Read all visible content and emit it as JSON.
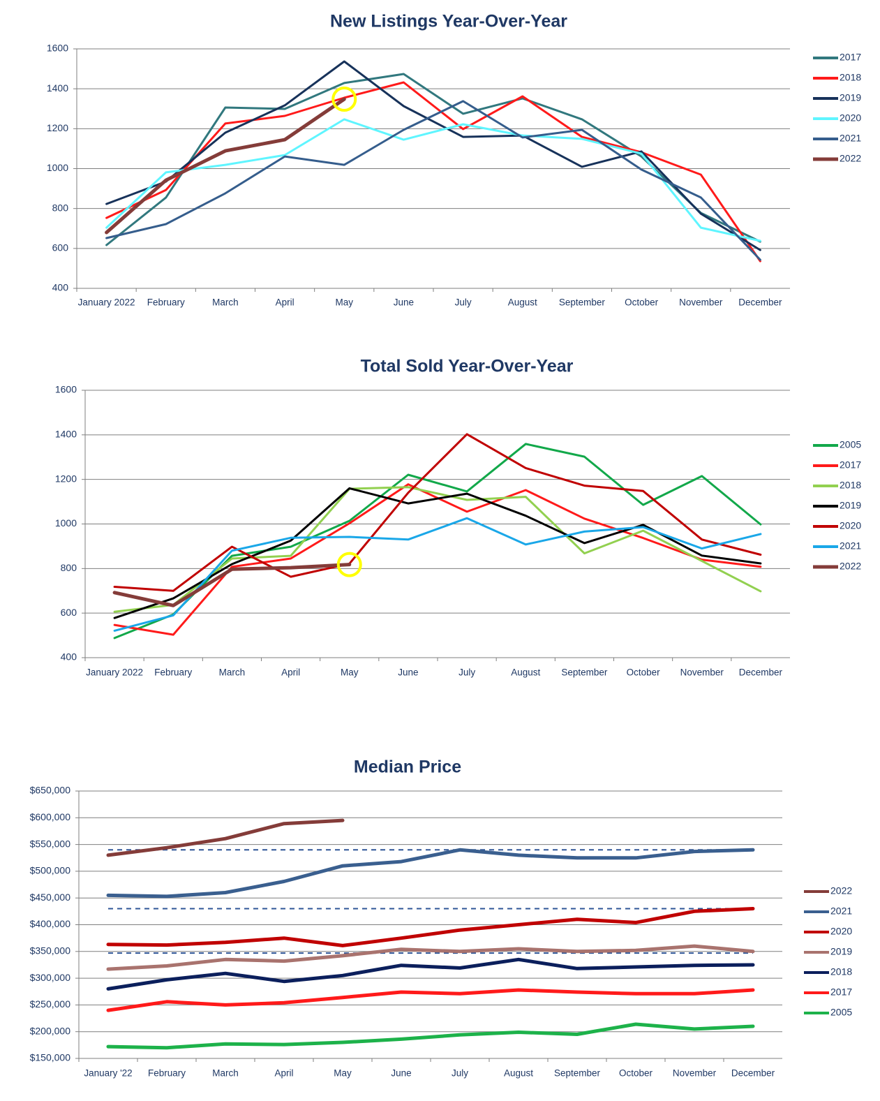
{
  "chart_data": [
    {
      "type": "line",
      "title": "New Listings Year-Over-Year",
      "categories": [
        "January 2022",
        "February",
        "March",
        "April",
        "May",
        "June",
        "July",
        "August",
        "September",
        "October",
        "November",
        "December"
      ],
      "ylim": [
        400,
        1600
      ],
      "yticks": [
        400,
        600,
        800,
        1000,
        1200,
        1400,
        1600
      ],
      "grid": true,
      "legend": "right",
      "series": [
        {
          "name": "2017",
          "color": "#31787e",
          "values": [
            617,
            855,
            1306,
            1299,
            1429,
            1474,
            1275,
            1352,
            1247,
            1061,
            778,
            634
          ]
        },
        {
          "name": "2018",
          "color": "#ff1a1a",
          "values": [
            753,
            893,
            1226,
            1264,
            1355,
            1432,
            1198,
            1362,
            1159,
            1082,
            970,
            536
          ]
        },
        {
          "name": "2019",
          "color": "#17325a",
          "values": [
            823,
            935,
            1180,
            1317,
            1537,
            1313,
            1159,
            1166,
            1009,
            1086,
            774,
            592
          ]
        },
        {
          "name": "2020",
          "color": "#5ff5ff",
          "values": [
            704,
            981,
            1019,
            1068,
            1247,
            1145,
            1222,
            1166,
            1149,
            1075,
            704,
            638
          ]
        },
        {
          "name": "2021",
          "color": "#355d8c",
          "values": [
            652,
            722,
            876,
            1061,
            1019,
            1194,
            1338,
            1156,
            1194,
            995,
            855,
            543
          ]
        },
        {
          "name": "2022",
          "color": "#843c39",
          "values": [
            680,
            942,
            1089,
            1145,
            1348,
            null,
            null,
            null,
            null,
            null,
            null,
            null
          ]
        }
      ]
    },
    {
      "type": "line",
      "title": "Total Sold Year-Over-Year",
      "categories": [
        "January 2022",
        "February",
        "March",
        "April",
        "May",
        "June",
        "July",
        "August",
        "September",
        "October",
        "November",
        "December"
      ],
      "ylim": [
        400,
        1600
      ],
      "yticks": [
        400,
        600,
        800,
        1000,
        1200,
        1400,
        1600
      ],
      "grid": true,
      "legend": "right",
      "series": [
        {
          "name": "2005",
          "color": "#12a84a",
          "values": [
            488,
            594,
            857,
            898,
            1014,
            1221,
            1146,
            1359,
            1302,
            1086,
            1215,
            998
          ]
        },
        {
          "name": "2017",
          "color": "#ff1a1a",
          "values": [
            547,
            503,
            808,
            845,
            1003,
            1178,
            1055,
            1152,
            1024,
            937,
            840,
            808
          ]
        },
        {
          "name": "2018",
          "color": "#92d050",
          "values": [
            606,
            637,
            845,
            857,
            1158,
            1165,
            1108,
            1122,
            868,
            970,
            834,
            698
          ]
        },
        {
          "name": "2019",
          "color": "#000000",
          "values": [
            578,
            666,
            820,
            925,
            1160,
            1092,
            1136,
            1037,
            914,
            996,
            858,
            823
          ]
        },
        {
          "name": "2020",
          "color": "#c00000",
          "values": [
            718,
            700,
            898,
            763,
            822,
            1140,
            1403,
            1251,
            1172,
            1148,
            930,
            862
          ]
        },
        {
          "name": "2021",
          "color": "#1aa7e8",
          "values": [
            521,
            590,
            880,
            938,
            942,
            930,
            1026,
            908,
            966,
            986,
            890,
            955
          ]
        },
        {
          "name": "2022",
          "color": "#843c39",
          "values": [
            692,
            634,
            797,
            804,
            818,
            null,
            null,
            null,
            null,
            null,
            null,
            null
          ]
        }
      ]
    },
    {
      "type": "line",
      "title": "Median Price",
      "categories": [
        "January '22",
        "February",
        "March",
        "April",
        "May",
        "June",
        "July",
        "August",
        "September",
        "October",
        "November",
        "December"
      ],
      "ylim": [
        150000,
        650000
      ],
      "yticks": [
        {
          "value": 150000,
          "label": "$150,000"
        },
        {
          "value": 200000,
          "label": "$200,000"
        },
        {
          "value": 250000,
          "label": "$250,000"
        },
        {
          "value": 300000,
          "label": "$300,000"
        },
        {
          "value": 350000,
          "label": "$350,000"
        },
        {
          "value": 400000,
          "label": "$400,000"
        },
        {
          "value": 450000,
          "label": "$450,000"
        },
        {
          "value": 500000,
          "label": "$500,000"
        },
        {
          "value": 550000,
          "label": "$550,000"
        },
        {
          "value": 600000,
          "label": "$600,000"
        },
        {
          "value": 650000,
          "label": "$650,000"
        }
      ],
      "grid": true,
      "legend": "right",
      "reference_lines": [
        540000,
        430000,
        347000
      ],
      "reference_color": "#2f5597",
      "series": [
        {
          "name": "2022",
          "color": "#843c39",
          "values": [
            530000,
            544000,
            561000,
            589000,
            595000,
            null,
            null,
            null,
            null,
            null,
            null,
            null
          ]
        },
        {
          "name": "2021",
          "color": "#3a5f8f",
          "values": [
            455000,
            453000,
            460000,
            481000,
            510000,
            518000,
            540000,
            530000,
            525000,
            525000,
            537000,
            540000
          ]
        },
        {
          "name": "2020",
          "color": "#c00000",
          "values": [
            363000,
            362000,
            367000,
            375000,
            361000,
            375000,
            390000,
            400000,
            410000,
            404000,
            425000,
            430000
          ]
        },
        {
          "name": "2019",
          "color": "#a9736e",
          "values": [
            317000,
            323000,
            335000,
            332000,
            342000,
            354000,
            350000,
            355000,
            350000,
            352000,
            360000,
            350000
          ]
        },
        {
          "name": "2018",
          "color": "#0b1f5c",
          "values": [
            280000,
            297000,
            309000,
            294000,
            305000,
            324000,
            319000,
            335000,
            318000,
            321000,
            324000,
            325000
          ]
        },
        {
          "name": "2017",
          "color": "#ff1a1a",
          "values": [
            240000,
            256000,
            250000,
            254000,
            264000,
            274000,
            271000,
            278000,
            274000,
            271000,
            271000,
            278000
          ]
        },
        {
          "name": "2005",
          "color": "#1db24a",
          "values": [
            172000,
            170000,
            177000,
            176000,
            180000,
            186000,
            194000,
            199000,
            195000,
            214000,
            205000,
            210000
          ]
        }
      ]
    }
  ]
}
